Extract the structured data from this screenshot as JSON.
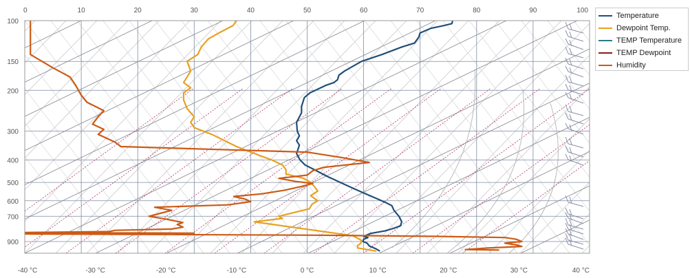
{
  "chart_data": {
    "type": "line",
    "title": "",
    "x_bottom": {
      "min": -40,
      "max": 40,
      "step": 10,
      "tick_labels": [
        "-40 °C",
        "-30 °C",
        "-20 °C",
        "-10 °C",
        "0 °C",
        "10 °C",
        "20 °C",
        "30 °C",
        "40 °C"
      ]
    },
    "x_top": {
      "min": 0,
      "max": 100,
      "step": 10,
      "tick_labels": [
        "0",
        "10",
        "20",
        "30",
        "40",
        "50",
        "60",
        "70",
        "80",
        "90",
        "100"
      ]
    },
    "y_pressure": {
      "min": 100,
      "max": 1000,
      "scale": "log",
      "tick_labels": [
        "100",
        "150",
        "200",
        "300",
        "400",
        "500",
        "600",
        "700",
        "900"
      ],
      "ticks": [
        100,
        150,
        200,
        300,
        400,
        500,
        600,
        700,
        900
      ]
    },
    "grid": true,
    "legend_position": "right",
    "series": [
      {
        "name": "Temperature",
        "color": "#1f4e79",
        "axis": "bottom",
        "points": [
          [
            10.3,
            990
          ],
          [
            9.8,
            970
          ],
          [
            8.8,
            940
          ],
          [
            8.5,
            915
          ],
          [
            7.9,
            900
          ],
          [
            8,
            880
          ],
          [
            8.6,
            865
          ],
          [
            8,
            855
          ],
          [
            9,
            830
          ],
          [
            11,
            810
          ],
          [
            12.2,
            790
          ],
          [
            13.2,
            770
          ],
          [
            13.4,
            740
          ],
          [
            13,
            700
          ],
          [
            12.3,
            660
          ],
          [
            12,
            630
          ],
          [
            11.1,
            610
          ],
          [
            10,
            590
          ],
          [
            8.3,
            560
          ],
          [
            6.5,
            530
          ],
          [
            4.7,
            500
          ],
          [
            2.8,
            470
          ],
          [
            1,
            440
          ],
          [
            -0.3,
            420
          ],
          [
            -1,
            400
          ],
          [
            -1.5,
            375
          ],
          [
            -1.1,
            345
          ],
          [
            -1.5,
            330
          ],
          [
            -1.1,
            315
          ],
          [
            -1.4,
            300
          ],
          [
            -1.5,
            275
          ],
          [
            -0.8,
            250
          ],
          [
            -0.8,
            235
          ],
          [
            -0.4,
            215
          ],
          [
            0.4,
            205
          ],
          [
            2.7,
            190
          ],
          [
            3.8,
            185
          ],
          [
            4.3,
            180
          ],
          [
            4.5,
            172
          ],
          [
            5.3,
            165
          ],
          [
            7.7,
            150
          ],
          [
            10.6,
            140
          ],
          [
            13.4,
            130
          ],
          [
            15.2,
            125
          ],
          [
            15.8,
            118
          ],
          [
            16,
            113
          ],
          [
            17.5,
            108
          ],
          [
            19.4,
            105
          ],
          [
            20.5,
            103
          ],
          [
            20.6,
            100
          ]
        ]
      },
      {
        "name": "Dewpoint Temp.",
        "color": "#e8a020",
        "axis": "bottom",
        "points": [
          [
            9.8,
            990
          ],
          [
            7.2,
            960
          ],
          [
            7.1,
            940
          ],
          [
            7.6,
            915
          ],
          [
            7.7,
            890
          ],
          [
            6.5,
            850
          ],
          [
            -7.5,
            740
          ],
          [
            -3.5,
            715
          ],
          [
            -4,
            700
          ],
          [
            -1.5,
            670
          ],
          [
            0.3,
            650
          ],
          [
            0.7,
            620
          ],
          [
            1.5,
            600
          ],
          [
            0.5,
            570
          ],
          [
            1.5,
            545
          ],
          [
            1,
            520
          ],
          [
            0.5,
            500
          ],
          [
            -0.5,
            480
          ],
          [
            -3,
            460
          ],
          [
            -3,
            440
          ],
          [
            -3.5,
            420
          ],
          [
            -5,
            400
          ],
          [
            -7,
            380
          ],
          [
            -10,
            350
          ],
          [
            -13.5,
            310
          ],
          [
            -16,
            290
          ],
          [
            -16.5,
            275
          ],
          [
            -16,
            260
          ],
          [
            -17,
            240
          ],
          [
            -17.5,
            220
          ],
          [
            -17.5,
            205
          ],
          [
            -16.5,
            195
          ],
          [
            -17.5,
            185
          ],
          [
            -17,
            175
          ],
          [
            -16.5,
            165
          ],
          [
            -17,
            150
          ],
          [
            -15.5,
            140
          ],
          [
            -15,
            130
          ],
          [
            -14,
            120
          ],
          [
            -12.5,
            113
          ],
          [
            -10.5,
            105
          ],
          [
            -10,
            100
          ]
        ]
      },
      {
        "name": "TEMP Temperature",
        "color": "#2a7a8a",
        "axis": "bottom",
        "points": []
      },
      {
        "name": "TEMP Dewpoint",
        "color": "#8b1a1a",
        "axis": "bottom",
        "points": []
      },
      {
        "name": "Humidity",
        "color": "#cc5a14",
        "axis": "top",
        "points": [
          [
            84,
            980
          ],
          [
            78,
            975
          ],
          [
            82,
            960
          ],
          [
            88,
            945
          ],
          [
            87,
            930
          ],
          [
            85,
            915
          ],
          [
            88,
            900
          ],
          [
            87,
            880
          ],
          [
            85,
            865
          ],
          [
            73,
            855
          ],
          [
            52,
            845
          ],
          [
            0,
            835
          ],
          [
            30,
            828
          ],
          [
            0,
            822
          ],
          [
            15,
            815
          ],
          [
            16,
            805
          ],
          [
            26,
            795
          ],
          [
            28,
            780
          ],
          [
            27,
            760
          ],
          [
            28,
            745
          ],
          [
            25,
            720
          ],
          [
            22,
            700
          ],
          [
            24,
            680
          ],
          [
            26,
            660
          ],
          [
            23,
            640
          ],
          [
            36,
            625
          ],
          [
            40,
            605
          ],
          [
            39,
            590
          ],
          [
            37,
            575
          ],
          [
            42,
            560
          ],
          [
            46,
            540
          ],
          [
            49,
            520
          ],
          [
            51,
            505
          ],
          [
            48,
            495
          ],
          [
            45,
            480
          ],
          [
            50,
            465
          ],
          [
            51,
            445
          ],
          [
            53,
            430
          ],
          [
            61,
            410
          ],
          [
            56,
            390
          ],
          [
            50,
            370
          ],
          [
            17,
            350
          ],
          [
            16,
            335
          ],
          [
            13,
            310
          ],
          [
            14,
            295
          ],
          [
            12,
            280
          ],
          [
            13,
            260
          ],
          [
            14,
            245
          ],
          [
            11,
            225
          ],
          [
            10,
            210
          ],
          [
            9,
            190
          ],
          [
            8,
            175
          ],
          [
            5,
            160
          ],
          [
            1,
            140
          ],
          [
            1,
            125
          ],
          [
            1,
            100
          ]
        ]
      }
    ]
  },
  "legend": {
    "items": [
      {
        "label": "Temperature",
        "color": "#1f4e79"
      },
      {
        "label": "Dewpoint Temp.",
        "color": "#e8a020"
      },
      {
        "label": "TEMP Temperature",
        "color": "#2a7a8a"
      },
      {
        "label": "TEMP Dewpoint",
        "color": "#8b1a1a"
      },
      {
        "label": "Humidity",
        "color": "#cc5a14"
      }
    ]
  }
}
